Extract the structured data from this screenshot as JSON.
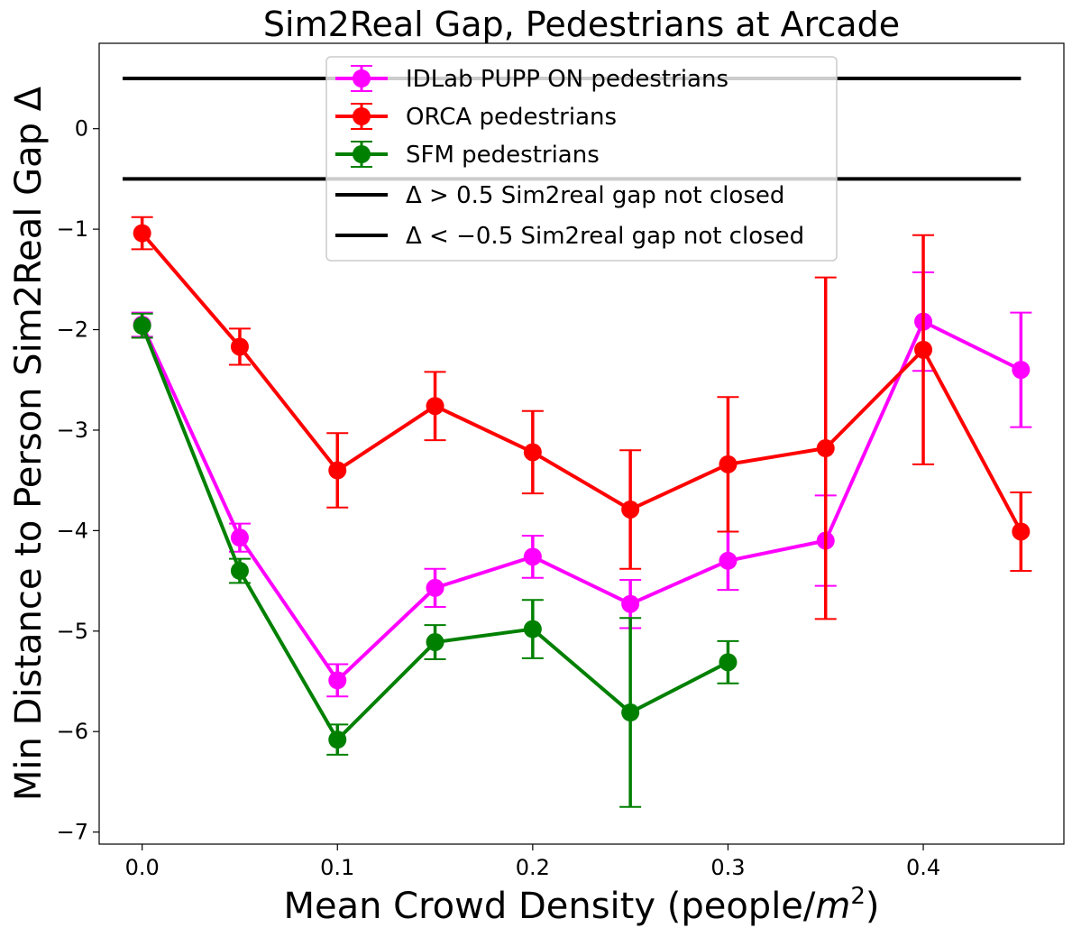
{
  "chart_data": {
    "type": "line",
    "title": "Sim2Real Gap, Pedestrians at Arcade",
    "xlabel": "Mean Crowd Density (people/",
    "xlabel_unit_base": "m",
    "xlabel_unit_exp": "2",
    "xlabel_suffix": ")",
    "ylabel": "Min Distance to Person Sim2Real Gap Δ",
    "xlim": [
      -0.022,
      0.472
    ],
    "ylim": [
      -7.12,
      0.85
    ],
    "x_ticks": [
      "0.0",
      "0.1",
      "0.2",
      "0.3",
      "0.4"
    ],
    "x_tick_values": [
      0.0,
      0.1,
      0.2,
      0.3,
      0.4
    ],
    "y_ticks": [
      "−7",
      "−6",
      "−5",
      "−4",
      "−3",
      "−2",
      "−1",
      "0"
    ],
    "y_tick_values": [
      -7,
      -6,
      -5,
      -4,
      -3,
      -2,
      -1,
      0
    ],
    "grid": false,
    "legend_position": "top-center",
    "series": [
      {
        "name": "IDLab PUPP ON pedestrians",
        "color": "#ff00ff",
        "x": [
          0.0,
          0.05,
          0.1,
          0.15,
          0.2,
          0.25,
          0.3,
          0.35,
          0.4,
          0.45
        ],
        "y": [
          -1.95,
          -4.07,
          -5.49,
          -4.57,
          -4.26,
          -4.73,
          -4.3,
          -4.1,
          -1.92,
          -2.4
        ],
        "err": [
          0.12,
          0.14,
          0.16,
          0.19,
          0.21,
          0.24,
          0.29,
          0.45,
          0.49,
          0.57
        ]
      },
      {
        "name": "ORCA pedestrians",
        "color": "#ff0000",
        "x": [
          0.0,
          0.05,
          0.1,
          0.15,
          0.2,
          0.25,
          0.3,
          0.35,
          0.4,
          0.45
        ],
        "y": [
          -1.04,
          -2.17,
          -3.4,
          -2.76,
          -3.22,
          -3.79,
          -3.34,
          -3.18,
          -2.2,
          -4.01
        ],
        "err": [
          0.16,
          0.18,
          0.37,
          0.34,
          0.41,
          0.59,
          0.67,
          1.7,
          1.14,
          0.39
        ]
      },
      {
        "name": "SFM pedestrians",
        "color": "#008000",
        "x": [
          0.0,
          0.05,
          0.1,
          0.15,
          0.2,
          0.25,
          0.3
        ],
        "y": [
          -1.96,
          -4.4,
          -6.08,
          -5.11,
          -4.98,
          -5.81,
          -5.31
        ],
        "err": [
          0.12,
          0.12,
          0.15,
          0.17,
          0.29,
          0.94,
          0.21
        ]
      }
    ],
    "reference_lines": [
      {
        "name": "Δ > 0.5 Sim2real gap not closed",
        "y": 0.5,
        "x_range": [
          -0.01,
          0.45
        ],
        "color": "#000000"
      },
      {
        "name": "Δ < −0.5 Sim2real gap not closed",
        "y": -0.5,
        "x_range": [
          -0.01,
          0.45
        ],
        "color": "#000000"
      }
    ]
  }
}
